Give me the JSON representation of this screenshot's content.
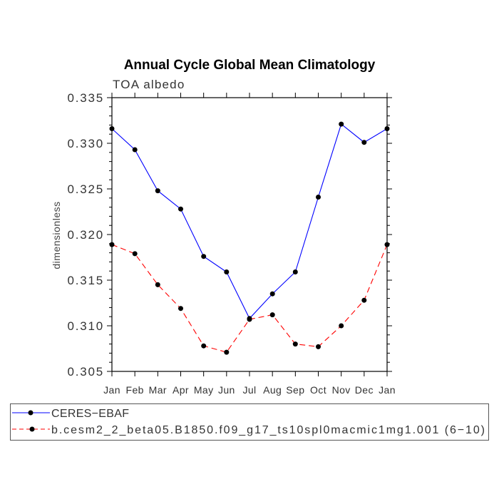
{
  "chart_data": {
    "type": "line",
    "title": "Annual Cycle Global Mean Climatology",
    "subtitle": "TOA albedo",
    "xlabel": "",
    "ylabel": "dimensionless",
    "categories": [
      "Jan",
      "Feb",
      "Mar",
      "Apr",
      "May",
      "Jun",
      "Jul",
      "Aug",
      "Sep",
      "Oct",
      "Nov",
      "Dec",
      "Jan"
    ],
    "ylim": [
      0.305,
      0.335
    ],
    "yticks": [
      "0.305",
      "0.310",
      "0.315",
      "0.320",
      "0.325",
      "0.330",
      "0.335"
    ],
    "grid": false,
    "legend": "bottom",
    "series": [
      {
        "name": "CERES−EBAF",
        "color": "#0000ff",
        "values": [
          0.3316,
          0.3293,
          0.3248,
          0.3228,
          0.3176,
          0.3159,
          0.3108,
          0.3135,
          0.3159,
          0.3241,
          0.3321,
          0.3301,
          0.3316
        ]
      },
      {
        "name": "b.cesm2_2_beta05.B1850.f09_g17_ts10spl0macmic1mg1.001 (6−10)",
        "color": "#ff0000",
        "values": [
          0.3189,
          0.3179,
          0.3145,
          0.3119,
          0.3078,
          0.3071,
          0.3107,
          0.3112,
          0.308,
          0.3077,
          0.31,
          0.3128,
          0.3189
        ]
      }
    ]
  }
}
